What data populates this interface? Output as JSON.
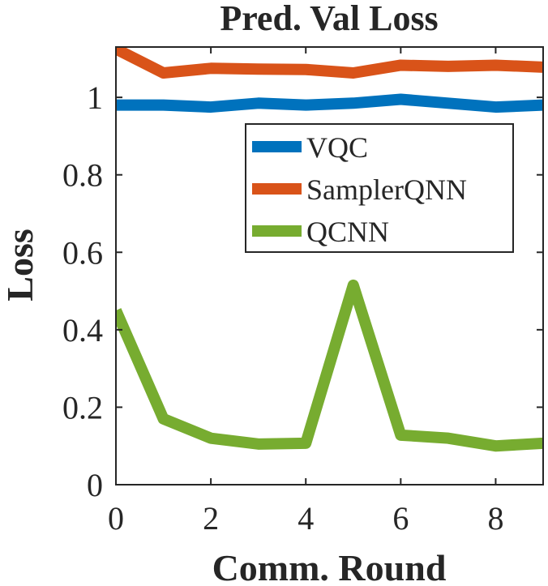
{
  "chart_data": {
    "type": "line",
    "title": "Pred. Val Loss",
    "xlabel": "Comm. Round",
    "ylabel": "Loss",
    "xlim": [
      0,
      9
    ],
    "ylim": [
      0,
      1.13
    ],
    "xticks": [
      0,
      2,
      4,
      6,
      8
    ],
    "yticks": [
      0,
      0.2,
      0.4,
      0.6,
      0.8,
      1
    ],
    "x": [
      0,
      1,
      2,
      3,
      4,
      5,
      6,
      7,
      8,
      9
    ],
    "series": [
      {
        "name": "VQC",
        "color": "#0072BD",
        "values": [
          0.98,
          0.98,
          0.975,
          0.985,
          0.98,
          0.985,
          0.995,
          0.985,
          0.975,
          0.98
        ]
      },
      {
        "name": "SamplerQNN",
        "color": "#D95319",
        "values": [
          1.125,
          1.063,
          1.075,
          1.073,
          1.072,
          1.063,
          1.083,
          1.08,
          1.083,
          1.078
        ]
      },
      {
        "name": "QCNN",
        "color": "#77AC30",
        "values": [
          0.45,
          0.17,
          0.12,
          0.105,
          0.107,
          0.515,
          0.128,
          0.12,
          0.1,
          0.107
        ]
      }
    ],
    "legend_position": "upper-right"
  }
}
